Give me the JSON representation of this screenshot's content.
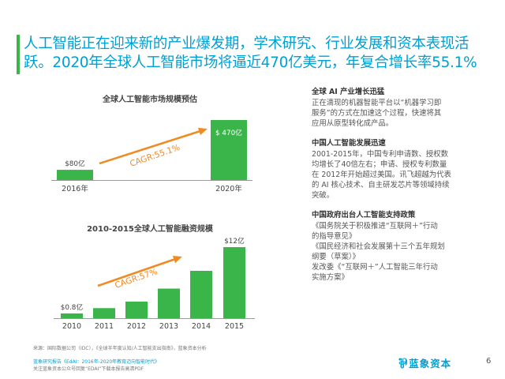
{
  "headline": {
    "line1": "人工智能正在迎来新的产业爆发期，学术研究、行业发展和资本表现活",
    "line2": "跃。2020年全球人工智能市场将逼近470亿美元，年复合增长率55.1%"
  },
  "colors": {
    "bar": "#39b54a",
    "arrow": "#f08a24",
    "headline": "#00a0d2"
  },
  "chart_data": [
    {
      "type": "bar",
      "title": "全球人工智能市场规模预估",
      "categories": [
        "2016年",
        "2020年"
      ],
      "values": [
        8,
        47
      ],
      "value_labels": [
        "$80亿",
        "$ 470亿"
      ],
      "ylim": [
        0,
        47
      ],
      "annotation": "CAGR:55.1%",
      "xlabel": "",
      "ylabel": ""
    },
    {
      "type": "bar",
      "title": "2010-2015全球人工智能融资规模",
      "categories": [
        "2010",
        "2011",
        "2012",
        "2013",
        "2014",
        "2015"
      ],
      "values": [
        0.8,
        1.7,
        2.8,
        5.0,
        8.0,
        12.0
      ],
      "value_labels": [
        "$0.8亿",
        "",
        "",
        "",
        "",
        "$12亿"
      ],
      "ylim": [
        0,
        12
      ],
      "annotation": "CAGR:57%",
      "xlabel": "",
      "ylabel": ""
    }
  ],
  "right_panel": {
    "sections": [
      {
        "heading": "全球 AI 产业增长迅猛",
        "lines": [
          "正在滴现的机器智能平台以“机器学习即",
          "服务”的方式在加速这个过程，快速将其",
          "应用从原型转化成产品。"
        ]
      },
      {
        "heading": "中国人工智能发展迅速",
        "lines": [
          "2001-2015年，中国专利申请数、授权数",
          "均增长了40倍左右；申请、授权专利数量",
          "在 2012年开始超过美国。讯飞超越为代表",
          "的 AI 核心技术、自主研发芯片等领域持续",
          "突破。"
        ]
      },
      {
        "heading": "中国政府出台人工智能支持政策",
        "lines": [
          "《国务院关于积极推进“互联网＋”行动",
          "的指导意见》",
          "《国民经济和社会发展第十三个五年规划",
          "纲要（草案）》",
          "发改委《“互联网＋”人工智能三年行动",
          "实施方案》"
        ]
      }
    ]
  },
  "footer": {
    "source": "来源：国际数据公司（IDC），《全球半年度认知/人工智能支出指南》，蓝象资本分析",
    "link": "蓝象研究报告《EdAI：2016年-2020年教育迈向智能时代》",
    "note": "关注蓝象资本公众号回复“EDAI”下载本报告高清PDF"
  },
  "logo": {
    "mark": "⅌",
    "text": "蓝象资本"
  },
  "page_number": "6"
}
